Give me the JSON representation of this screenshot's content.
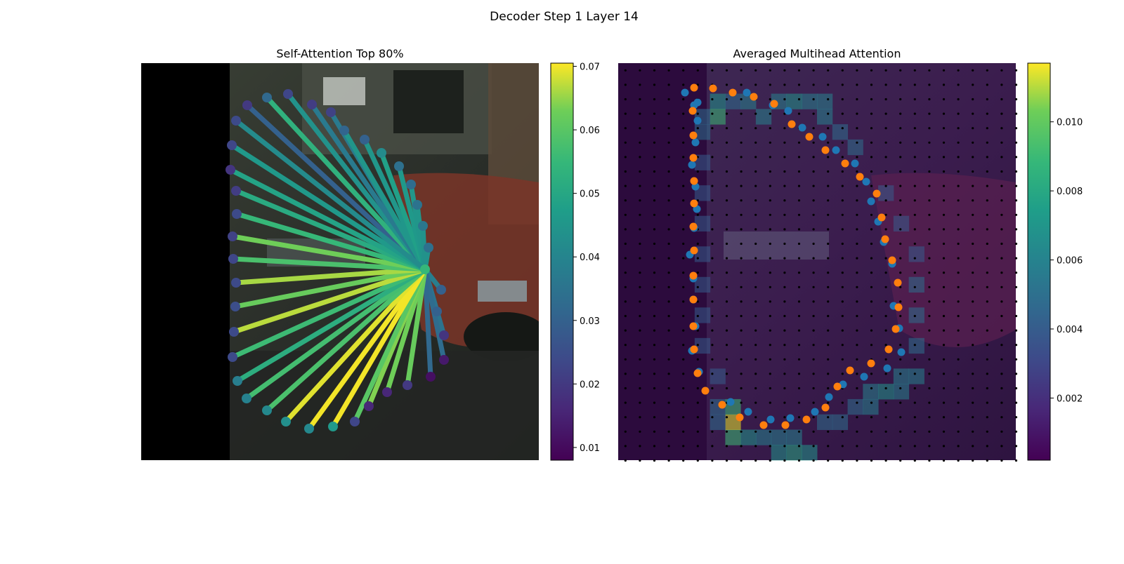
{
  "figure": {
    "suptitle": "Decoder Step 1 Layer 14"
  },
  "chart_data": [
    {
      "type": "scatter",
      "title": "Self-Attention Top 80%",
      "description_free": true,
      "query_point": [
        605,
        384
      ],
      "points": [
        [
          352,
          150
        ],
        [
          380,
          139
        ],
        [
          410,
          134
        ],
        [
          444,
          149
        ],
        [
          471,
          160
        ],
        [
          490,
          186
        ],
        [
          519,
          199
        ],
        [
          543,
          218
        ],
        [
          568,
          237
        ],
        [
          585,
          263
        ],
        [
          594,
          292
        ],
        [
          602,
          322
        ],
        [
          610,
          353
        ],
        [
          628,
          413
        ],
        [
          622,
          444
        ],
        [
          632,
          478
        ],
        [
          632,
          513
        ],
        [
          613,
          537
        ],
        [
          580,
          549
        ],
        [
          551,
          559
        ],
        [
          525,
          579
        ],
        [
          505,
          601
        ],
        [
          474,
          608
        ],
        [
          440,
          611
        ],
        [
          407,
          601
        ],
        [
          380,
          585
        ],
        [
          351,
          568
        ],
        [
          338,
          543
        ],
        [
          331,
          509
        ],
        [
          333,
          473
        ],
        [
          335,
          437
        ],
        [
          336,
          403
        ],
        [
          332,
          369
        ],
        [
          331,
          337
        ],
        [
          337,
          305
        ],
        [
          336,
          272
        ],
        [
          328,
          242
        ],
        [
          330,
          207
        ],
        [
          336,
          172
        ]
      ],
      "weights": [
        0.02,
        0.032,
        0.023,
        0.021,
        0.022,
        0.031,
        0.03,
        0.042,
        0.034,
        0.033,
        0.035,
        0.036,
        0.034,
        0.03,
        0.03,
        0.019,
        0.013,
        0.011,
        0.02,
        0.016,
        0.016,
        0.023,
        0.046,
        0.041,
        0.043,
        0.041,
        0.039,
        0.038,
        0.024,
        0.024,
        0.025,
        0.024,
        0.023,
        0.022,
        0.024,
        0.021,
        0.019,
        0.023,
        0.024
      ],
      "line_weights": [
        0.03,
        0.053,
        0.044,
        0.037,
        0.037,
        0.045,
        0.045,
        0.048,
        0.046,
        0.045,
        0.045,
        0.044,
        0.044,
        0.038,
        0.038,
        0.035,
        0.033,
        0.032,
        0.062,
        0.063,
        0.064,
        0.06,
        0.07,
        0.07,
        0.069,
        0.058,
        0.057,
        0.052,
        0.056,
        0.067,
        0.062,
        0.066,
        0.058,
        0.063,
        0.055,
        0.051,
        0.049,
        0.046,
        0.042
      ],
      "colorbar": {
        "min": 0.008,
        "max": 0.0705,
        "ticks": [
          "0.01",
          "0.02",
          "0.03",
          "0.04",
          "0.05",
          "0.06",
          "0.07"
        ],
        "tick_values": [
          0.01,
          0.02,
          0.03,
          0.04,
          0.05,
          0.06,
          0.07
        ]
      }
    },
    {
      "type": "heatmap",
      "title": "Averaged Multihead Attention",
      "grid": {
        "rows": 26,
        "cols": 26
      },
      "hot_cells": [
        [
          2,
          6,
          0.007
        ],
        [
          3,
          6,
          0.009
        ],
        [
          2,
          8,
          0.006
        ],
        [
          3,
          9,
          0.006
        ],
        [
          2,
          11,
          0.007
        ],
        [
          3,
          13,
          0.006
        ],
        [
          2,
          13,
          0.006
        ],
        [
          4,
          14,
          0.005
        ],
        [
          5,
          15,
          0.005
        ],
        [
          8,
          17,
          0.004
        ],
        [
          10,
          18,
          0.004
        ],
        [
          12,
          19,
          0.004
        ],
        [
          14,
          19,
          0.005
        ],
        [
          16,
          19,
          0.005
        ],
        [
          18,
          19,
          0.005
        ],
        [
          20,
          18,
          0.006
        ],
        [
          21,
          17,
          0.007
        ],
        [
          21,
          16,
          0.006
        ],
        [
          22,
          15,
          0.005
        ],
        [
          23,
          13,
          0.005
        ],
        [
          24,
          11,
          0.006
        ],
        [
          25,
          11,
          0.008
        ],
        [
          25,
          12,
          0.007
        ],
        [
          24,
          9,
          0.006
        ],
        [
          24,
          7,
          0.009
        ],
        [
          23,
          7,
          0.0115
        ],
        [
          22,
          7,
          0.009
        ],
        [
          24,
          8,
          0.007
        ],
        [
          23,
          6,
          0.005
        ],
        [
          22,
          6,
          0.005
        ],
        [
          20,
          6,
          0.004
        ],
        [
          18,
          5,
          0.004
        ],
        [
          16,
          5,
          0.004
        ],
        [
          14,
          5,
          0.004
        ],
        [
          12,
          5,
          0.004
        ],
        [
          10,
          5,
          0.004
        ],
        [
          8,
          5,
          0.004
        ],
        [
          6,
          5,
          0.004
        ],
        [
          4,
          5,
          0.005
        ],
        [
          3,
          5,
          0.005
        ],
        [
          2,
          7,
          0.005
        ],
        [
          2,
          10,
          0.006
        ],
        [
          2,
          12,
          0.006
        ],
        [
          24,
          10,
          0.006
        ],
        [
          25,
          10,
          0.007
        ],
        [
          23,
          14,
          0.005
        ],
        [
          21,
          18,
          0.006
        ],
        [
          20,
          19,
          0.006
        ],
        [
          22,
          16,
          0.006
        ]
      ],
      "series_blue": [
        [
          975,
          132
        ],
        [
          993,
          146
        ],
        [
          1063,
          132
        ],
        [
          1100,
          150
        ],
        [
          1122,
          158
        ],
        [
          1142,
          182
        ],
        [
          1171,
          195
        ],
        [
          1190,
          214
        ],
        [
          1217,
          233
        ],
        [
          1233,
          259
        ],
        [
          1240,
          287
        ],
        [
          1250,
          316
        ],
        [
          1258,
          345
        ],
        [
          1270,
          376
        ],
        [
          1272,
          436
        ],
        [
          1280,
          468
        ],
        [
          1283,
          502
        ],
        [
          1263,
          525
        ],
        [
          1230,
          537
        ],
        [
          1200,
          548
        ],
        [
          1180,
          566
        ],
        [
          1160,
          587
        ],
        [
          1125,
          596
        ],
        [
          1097,
          598
        ],
        [
          1065,
          587
        ],
        [
          1040,
          573
        ],
        [
          995,
          530
        ],
        [
          985,
          500
        ],
        [
          990,
          465
        ],
        [
          987,
          427
        ],
        [
          987,
          397
        ],
        [
          982,
          363
        ],
        [
          988,
          325
        ],
        [
          992,
          298
        ],
        [
          990,
          266
        ],
        [
          985,
          235
        ],
        [
          990,
          203
        ],
        [
          993,
          172
        ],
        [
          988,
          150
        ]
      ],
      "series_orange": [
        [
          988,
          125
        ],
        [
          1015,
          126
        ],
        [
          1043,
          132
        ],
        [
          1073,
          138
        ],
        [
          1102,
          148
        ],
        [
          1127,
          177
        ],
        [
          1152,
          195
        ],
        [
          1175,
          214
        ],
        [
          1203,
          233
        ],
        [
          1224,
          252
        ],
        [
          1248,
          276
        ],
        [
          1255,
          310
        ],
        [
          1260,
          341
        ],
        [
          1270,
          371
        ],
        [
          1278,
          403
        ],
        [
          1279,
          438
        ],
        [
          1275,
          469
        ],
        [
          1265,
          498
        ],
        [
          1240,
          518
        ],
        [
          1210,
          528
        ],
        [
          1192,
          551
        ],
        [
          1175,
          581
        ],
        [
          1148,
          598
        ],
        [
          1118,
          606
        ],
        [
          1087,
          606
        ],
        [
          1053,
          595
        ],
        [
          1028,
          577
        ],
        [
          1004,
          557
        ],
        [
          993,
          532
        ],
        [
          988,
          498
        ],
        [
          987,
          465
        ],
        [
          987,
          427
        ],
        [
          987,
          393
        ],
        [
          988,
          357
        ],
        [
          987,
          323
        ],
        [
          988,
          290
        ],
        [
          988,
          258
        ],
        [
          987,
          225
        ],
        [
          987,
          193
        ],
        [
          986,
          158
        ]
      ],
      "colorbar": {
        "min": 0.0002,
        "max": 0.0117,
        "ticks": [
          "0.002",
          "0.004",
          "0.006",
          "0.008",
          "0.010"
        ],
        "tick_values": [
          0.002,
          0.004,
          0.006,
          0.008,
          0.01
        ]
      }
    }
  ]
}
